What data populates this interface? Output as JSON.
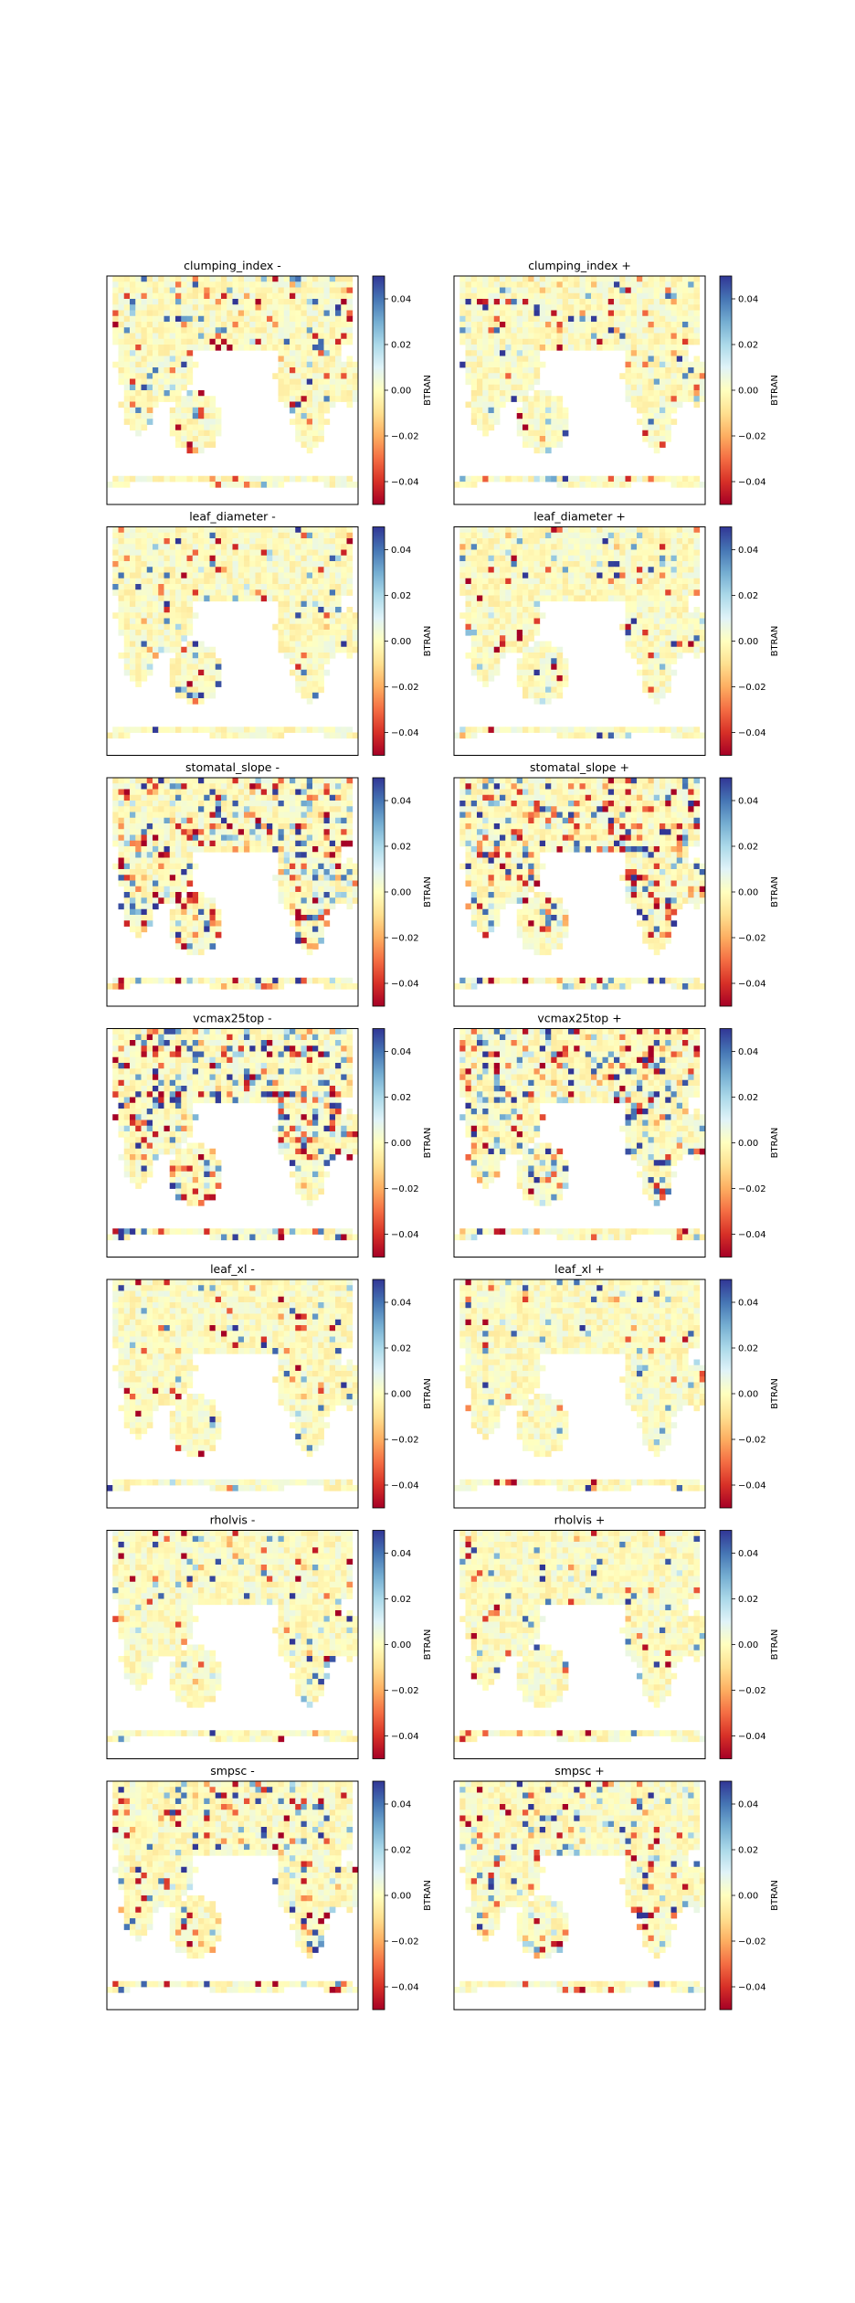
{
  "figure": {
    "colorbar_label": "BTRAN",
    "colorbar_ticks": [
      "0.04",
      "0.02",
      "0.00",
      "−0.02",
      "−0.04"
    ],
    "colormap": "RdYlBu",
    "vmin": -0.05,
    "vmax": 0.05
  },
  "chart_data": [
    {
      "type": "heatmap",
      "title": "clumping_index -",
      "colorbar_label": "BTRAN",
      "range": [
        -0.05,
        0.05
      ],
      "intensity": 0.35
    },
    {
      "type": "heatmap",
      "title": "clumping_index +",
      "colorbar_label": "BTRAN",
      "range": [
        -0.05,
        0.05
      ],
      "intensity": 0.35
    },
    {
      "type": "heatmap",
      "title": "leaf_diameter -",
      "colorbar_label": "BTRAN",
      "range": [
        -0.05,
        0.05
      ],
      "intensity": 0.25
    },
    {
      "type": "heatmap",
      "title": "leaf_diameter +",
      "colorbar_label": "BTRAN",
      "range": [
        -0.05,
        0.05
      ],
      "intensity": 0.25
    },
    {
      "type": "heatmap",
      "title": "stomatal_slope -",
      "colorbar_label": "BTRAN",
      "range": [
        -0.05,
        0.05
      ],
      "intensity": 0.85
    },
    {
      "type": "heatmap",
      "title": "stomatal_slope +",
      "colorbar_label": "BTRAN",
      "range": [
        -0.05,
        0.05
      ],
      "intensity": 0.85
    },
    {
      "type": "heatmap",
      "title": "vcmax25top -",
      "colorbar_label": "BTRAN",
      "range": [
        -0.05,
        0.05
      ],
      "intensity": 0.8
    },
    {
      "type": "heatmap",
      "title": "vcmax25top +",
      "colorbar_label": "BTRAN",
      "range": [
        -0.05,
        0.05
      ],
      "intensity": 0.8
    },
    {
      "type": "heatmap",
      "title": "leaf_xl -",
      "colorbar_label": "BTRAN",
      "range": [
        -0.05,
        0.05
      ],
      "intensity": 0.2
    },
    {
      "type": "heatmap",
      "title": "leaf_xl +",
      "colorbar_label": "BTRAN",
      "range": [
        -0.05,
        0.05
      ],
      "intensity": 0.2
    },
    {
      "type": "heatmap",
      "title": "rholvis -",
      "colorbar_label": "BTRAN",
      "range": [
        -0.05,
        0.05
      ],
      "intensity": 0.25
    },
    {
      "type": "heatmap",
      "title": "rholvis +",
      "colorbar_label": "BTRAN",
      "range": [
        -0.05,
        0.05
      ],
      "intensity": 0.25
    },
    {
      "type": "heatmap",
      "title": "smpsc -",
      "colorbar_label": "BTRAN",
      "range": [
        -0.05,
        0.05
      ],
      "intensity": 0.4
    },
    {
      "type": "heatmap",
      "title": "smpsc +",
      "colorbar_label": "BTRAN",
      "range": [
        -0.05,
        0.05
      ],
      "intensity": 0.4
    }
  ]
}
